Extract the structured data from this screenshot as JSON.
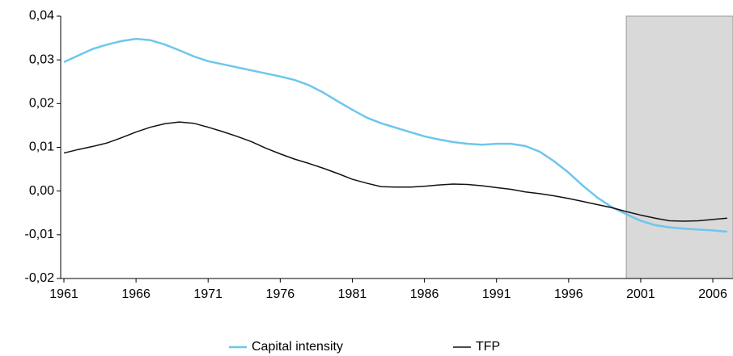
{
  "chart_data": {
    "type": "line",
    "x": [
      1961,
      1962,
      1963,
      1964,
      1965,
      1966,
      1967,
      1968,
      1969,
      1970,
      1971,
      1972,
      1973,
      1974,
      1975,
      1976,
      1977,
      1978,
      1979,
      1980,
      1981,
      1982,
      1983,
      1984,
      1985,
      1986,
      1987,
      1988,
      1989,
      1990,
      1991,
      1992,
      1993,
      1994,
      1995,
      1996,
      1997,
      1998,
      1999,
      2000,
      2001,
      2002,
      2003,
      2004,
      2005,
      2006,
      2007
    ],
    "series": [
      {
        "name": "Capital intensity",
        "color": "#6ec6ee",
        "values": [
          0.0295,
          0.031,
          0.0325,
          0.0335,
          0.0343,
          0.0348,
          0.0345,
          0.0335,
          0.0322,
          0.0308,
          0.0297,
          0.029,
          0.0283,
          0.0276,
          0.0269,
          0.0262,
          0.0254,
          0.0242,
          0.0225,
          0.0205,
          0.0186,
          0.0168,
          0.0155,
          0.0145,
          0.0135,
          0.0125,
          0.0118,
          0.0112,
          0.0108,
          0.0106,
          0.0108,
          0.0108,
          0.0103,
          0.009,
          0.0068,
          0.0042,
          0.0012,
          -0.0015,
          -0.0037,
          -0.0053,
          -0.0068,
          -0.0078,
          -0.0083,
          -0.0086,
          -0.0088,
          -0.009,
          -0.0093
        ]
      },
      {
        "name": "TFP",
        "color": "#111111",
        "values": [
          0.0087,
          0.0095,
          0.0102,
          0.011,
          0.0122,
          0.0135,
          0.0146,
          0.0154,
          0.0158,
          0.0155,
          0.0146,
          0.0136,
          0.0125,
          0.0113,
          0.0098,
          0.0085,
          0.0073,
          0.0063,
          0.0052,
          0.004,
          0.0027,
          0.0018,
          0.001,
          0.0009,
          0.0009,
          0.0011,
          0.0014,
          0.0016,
          0.0015,
          0.0012,
          0.0008,
          0.0004,
          -0.0002,
          -0.0006,
          -0.0011,
          -0.0017,
          -0.0024,
          -0.0031,
          -0.0038,
          -0.0047,
          -0.0055,
          -0.0062,
          -0.0068,
          -0.0069,
          -0.0068,
          -0.0065,
          -0.0062
        ]
      }
    ],
    "xlim": [
      1961,
      2007.4
    ],
    "xticks": [
      1961,
      1966,
      1971,
      1976,
      1981,
      1986,
      1991,
      1996,
      2001,
      2006
    ],
    "ylim": [
      -0.02,
      0.04
    ],
    "yticks": [
      {
        "value": -0.02,
        "label": "-0,02"
      },
      {
        "value": -0.01,
        "label": "-0,01"
      },
      {
        "value": 0,
        "label": "0,00"
      },
      {
        "value": 0.01,
        "label": "0,01"
      },
      {
        "value": 0.02,
        "label": "0,02"
      },
      {
        "value": 0.03,
        "label": "0,03"
      },
      {
        "value": 0.04,
        "label": "0,04"
      }
    ],
    "shaded_region": {
      "x": [
        2000,
        2007.4
      ],
      "color": "#d9d9d9"
    },
    "grid": false,
    "legend": "bottom"
  }
}
